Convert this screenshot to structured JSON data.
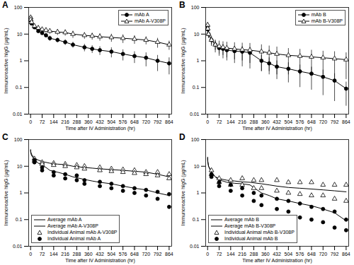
{
  "chart_data": [
    {
      "type": "line",
      "title": "A",
      "log": "y",
      "legend": "top-right",
      "x_label": "Time after IV Administration (hr)",
      "y_label": "Immunoreactive hIgG (µg/mL)",
      "xlim": [
        -12,
        880
      ],
      "xticks": [
        0,
        72,
        144,
        216,
        288,
        360,
        432,
        504,
        576,
        648,
        720,
        792,
        864
      ],
      "ylim": [
        0.01,
        100
      ],
      "yticks": [
        0.01,
        0.1,
        1,
        10,
        100
      ],
      "x": [
        0.25,
        1,
        6,
        24,
        48,
        72,
        96,
        120,
        168,
        216,
        264,
        336,
        384,
        432,
        504,
        576,
        648,
        720,
        792,
        864
      ],
      "series": [
        {
          "name": "mAb A",
          "color": "#000000",
          "marker": "circle",
          "line_style": "solid",
          "values": [
            40,
            32,
            25,
            18,
            13,
            11,
            9,
            7,
            6,
            5,
            4,
            3.2,
            2.8,
            2.5,
            2.2,
            1.8,
            1.5,
            1.3,
            1.0,
            0.8
          ],
          "error": [
            5,
            4,
            3,
            3,
            2,
            2,
            1.5,
            1.5,
            1.2,
            1.2,
            1,
            1,
            0.9,
            0.9,
            0.9,
            0.8,
            0.7,
            0.7,
            0.6,
            0.5
          ]
        },
        {
          "name": "mAb A-V308P",
          "color": "#000000",
          "marker": "open-triangle",
          "line_style": "solid",
          "values": [
            42,
            35,
            28,
            20,
            17,
            15,
            14,
            13,
            12,
            11.5,
            10,
            9,
            8.5,
            8,
            7.5,
            7,
            6.5,
            6,
            5,
            4
          ],
          "error": [
            5,
            4,
            4,
            3,
            3,
            3,
            3,
            3,
            3,
            3,
            3,
            2.5,
            2.5,
            2.5,
            2.5,
            2.5,
            2.3,
            2,
            2,
            1.5
          ]
        }
      ]
    },
    {
      "type": "line",
      "title": "B",
      "log": "y",
      "legend": "top-right",
      "x_label": "Time after IV Administration (hr)",
      "y_label": "Immunoreactive hIgG (µg/mL)",
      "xlim": [
        -12,
        880
      ],
      "xticks": [
        0,
        72,
        144,
        216,
        288,
        360,
        432,
        504,
        576,
        648,
        720,
        792,
        864
      ],
      "ylim": [
        0.01,
        100
      ],
      "yticks": [
        0.01,
        0.1,
        1,
        10,
        100
      ],
      "x": [
        0.25,
        1,
        6,
        24,
        48,
        72,
        96,
        120,
        168,
        216,
        264,
        336,
        384,
        432,
        504,
        576,
        648,
        720,
        792,
        864
      ],
      "series": [
        {
          "name": "mAb B",
          "color": "#000000",
          "marker": "circle",
          "line_style": "solid",
          "values": [
            20,
            15,
            10,
            6,
            4,
            3,
            2.8,
            2.5,
            2.3,
            2.2,
            2,
            1.0,
            0.8,
            0.6,
            0.5,
            0.4,
            0.33,
            0.25,
            0.18,
            0.09
          ],
          "error": [
            5,
            4,
            3,
            2,
            1.5,
            1.2,
            1.2,
            1.2,
            1.2,
            1.2,
            1.2,
            0.6,
            0.5,
            0.4,
            0.35,
            0.3,
            0.25,
            0.2,
            0.15,
            0.07
          ]
        },
        {
          "name": "mAb B-V308P",
          "color": "#000000",
          "marker": "open-triangle",
          "line_style": "solid",
          "values": [
            22,
            16,
            10,
            6,
            4,
            3.5,
            3.2,
            3,
            2.8,
            2.6,
            2.5,
            2.2,
            2,
            1.8,
            1.6,
            1.5,
            1.4,
            1.3,
            1.2,
            1.1
          ],
          "error": [
            5,
            4,
            3,
            2.5,
            2,
            2,
            2,
            2,
            2,
            2,
            2,
            1.8,
            1.6,
            1.5,
            1.3,
            1.2,
            1.1,
            1.0,
            1.0,
            0.9
          ]
        }
      ]
    },
    {
      "type": "line",
      "title": "C",
      "log": "y",
      "legend": "bottom-left",
      "x_label": "Time after IV Administration (hr)",
      "y_label": "Immunoreactive hIgG (µg/mL)",
      "xlim": [
        -12,
        880
      ],
      "xticks": [
        0,
        72,
        144,
        216,
        288,
        360,
        432,
        504,
        576,
        648,
        720,
        792,
        864
      ],
      "ylim": [
        0.01,
        100
      ],
      "yticks": [
        0.01,
        0.1,
        1,
        10,
        100
      ],
      "x": [
        0.25,
        1,
        6,
        24,
        48,
        72,
        96,
        120,
        168,
        216,
        264,
        336,
        384,
        432,
        504,
        576,
        648,
        720,
        792,
        864
      ],
      "series": [
        {
          "name": "Average mAb A",
          "color": "#000000",
          "line_style": "solid",
          "values": [
            40,
            32,
            25,
            18,
            13,
            11,
            9,
            7,
            6,
            5,
            4,
            3.2,
            2.8,
            2.5,
            2.2,
            1.8,
            1.5,
            1.3,
            1.0,
            0.8
          ]
        },
        {
          "name": "Average mAb A-V308P",
          "color": "#000000",
          "line_style": "solid",
          "values": [
            42,
            35,
            28,
            20,
            17,
            15,
            14,
            13,
            12,
            11.5,
            10,
            9,
            8.5,
            8,
            7.5,
            7,
            6.5,
            6,
            5,
            4
          ]
        },
        {
          "name": "Individual Animal mAb A-V308P",
          "type": "scatter",
          "color": "#000000",
          "marker": "open-triangle",
          "x": [
            24,
            24,
            72,
            72,
            144,
            144,
            216,
            216,
            288,
            288,
            336,
            336,
            432,
            432,
            504,
            504,
            576,
            576,
            648,
            648,
            720,
            720,
            792,
            792,
            864,
            864
          ],
          "values": [
            19,
            16,
            14,
            12,
            13,
            11,
            12,
            10,
            11,
            9,
            10,
            8,
            9,
            7,
            8,
            6.5,
            7.5,
            6,
            7,
            5.5,
            6,
            5,
            6,
            4.5,
            5,
            3.5
          ]
        },
        {
          "name": "Individual Animal mAb A",
          "type": "scatter",
          "color": "#000000",
          "marker": "circle",
          "x": [
            24,
            24,
            72,
            72,
            144,
            144,
            216,
            216,
            288,
            288,
            336,
            336,
            432,
            432,
            504,
            504,
            576,
            576,
            648,
            648,
            720,
            720,
            792,
            792,
            864,
            864
          ],
          "values": [
            17,
            14,
            9,
            7,
            6,
            4.5,
            5,
            3.5,
            4.5,
            3,
            3,
            2.2,
            2.6,
            1.8,
            2.2,
            1.5,
            1.8,
            1.2,
            1.5,
            1,
            1.3,
            0.8,
            1.1,
            0.6,
            0.9,
            0.3
          ]
        }
      ]
    },
    {
      "type": "line",
      "title": "D",
      "log": "y",
      "legend": "bottom-left",
      "x_label": "Time after IV Administration (hr)",
      "y_label": "Immunoreactive hIgG (µg/mL)",
      "xlim": [
        -12,
        880
      ],
      "xticks": [
        0,
        72,
        144,
        216,
        288,
        360,
        432,
        504,
        576,
        648,
        720,
        792,
        864
      ],
      "ylim": [
        0.01,
        100
      ],
      "yticks": [
        0.01,
        0.1,
        1,
        10,
        100
      ],
      "x": [
        0.25,
        1,
        6,
        24,
        48,
        72,
        96,
        120,
        168,
        216,
        264,
        336,
        384,
        432,
        504,
        576,
        648,
        720,
        792,
        864
      ],
      "series": [
        {
          "name": "Average mAb B",
          "color": "#000000",
          "line_style": "solid",
          "values": [
            20,
            15,
            10,
            6,
            4,
            3,
            2.8,
            2.5,
            2.3,
            2.2,
            2,
            1.0,
            0.8,
            0.6,
            0.5,
            0.4,
            0.33,
            0.25,
            0.18,
            0.09
          ]
        },
        {
          "name": "Average mAb B-V308P",
          "color": "#000000",
          "line_style": "solid",
          "values": [
            22,
            16,
            10,
            6,
            4,
            3.5,
            3.2,
            3,
            2.8,
            2.6,
            2.5,
            2.2,
            2,
            1.8,
            1.6,
            1.5,
            1.4,
            1.3,
            1.2,
            1.1
          ]
        },
        {
          "name": "Individual Animal mAb B-V308P",
          "type": "scatter",
          "color": "#000000",
          "marker": "open-triangle",
          "x": [
            24,
            24,
            72,
            72,
            144,
            144,
            216,
            216,
            288,
            288,
            336,
            336,
            432,
            432,
            504,
            504,
            576,
            576,
            648,
            648,
            720,
            720,
            792,
            792,
            864,
            864
          ],
          "values": [
            7,
            5,
            3.5,
            2.5,
            3,
            2,
            3.5,
            2,
            3,
            1.5,
            3,
            1.5,
            3,
            1.2,
            2.5,
            1,
            2.5,
            0.9,
            2.5,
            0.8,
            2,
            0.8,
            2,
            0.6,
            2,
            0.5
          ]
        },
        {
          "name": "Individual Animal mAb B",
          "type": "scatter",
          "color": "#000000",
          "marker": "circle",
          "x": [
            24,
            24,
            72,
            72,
            144,
            144,
            216,
            216,
            288,
            288,
            336,
            336,
            432,
            432,
            504,
            504,
            576,
            576,
            648,
            648,
            720,
            720,
            792,
            792,
            864,
            864
          ],
          "values": [
            5,
            4,
            2.5,
            1.8,
            2,
            1.2,
            1.5,
            0.8,
            1,
            0.5,
            0.8,
            0.35,
            0.6,
            0.25,
            0.5,
            0.2,
            0.4,
            0.12,
            0.3,
            0.1,
            0.25,
            0.08,
            0.2,
            0.05,
            0.1,
            0.04
          ]
        }
      ]
    }
  ]
}
